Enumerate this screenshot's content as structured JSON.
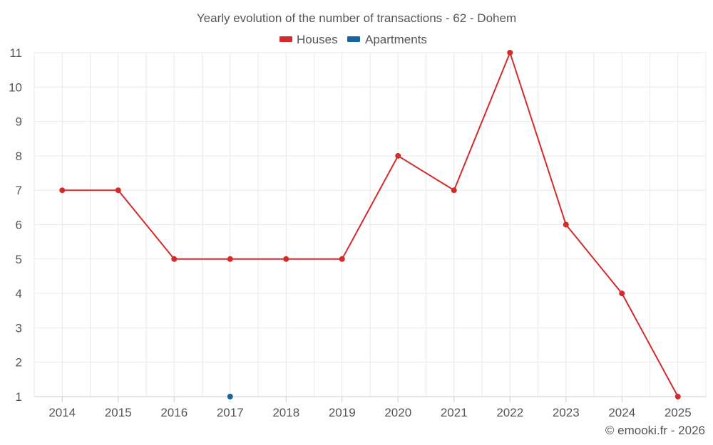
{
  "chart_data": {
    "type": "line",
    "title": "Yearly evolution of the number of transactions - 62 - Dohem",
    "categories": [
      "2014",
      "2015",
      "2016",
      "2017",
      "2018",
      "2019",
      "2020",
      "2021",
      "2022",
      "2023",
      "2024",
      "2025"
    ],
    "series": [
      {
        "name": "Houses",
        "color": "#d42a2a",
        "values": [
          7,
          7,
          5,
          5,
          5,
          5,
          8,
          7,
          11,
          6,
          4,
          1
        ]
      },
      {
        "name": "Apartments",
        "color": "#1565a0",
        "values": [
          null,
          null,
          null,
          1,
          null,
          null,
          null,
          null,
          null,
          null,
          null,
          null
        ]
      }
    ],
    "yticks": [
      "1",
      "2",
      "3",
      "4",
      "5",
      "6",
      "7",
      "8",
      "9",
      "10",
      "11"
    ],
    "ylim": [
      1,
      11
    ],
    "xlabel": "",
    "ylabel": "",
    "legend_position": "top-center",
    "grid": true
  },
  "credit": "© emooki.fr - 2026"
}
